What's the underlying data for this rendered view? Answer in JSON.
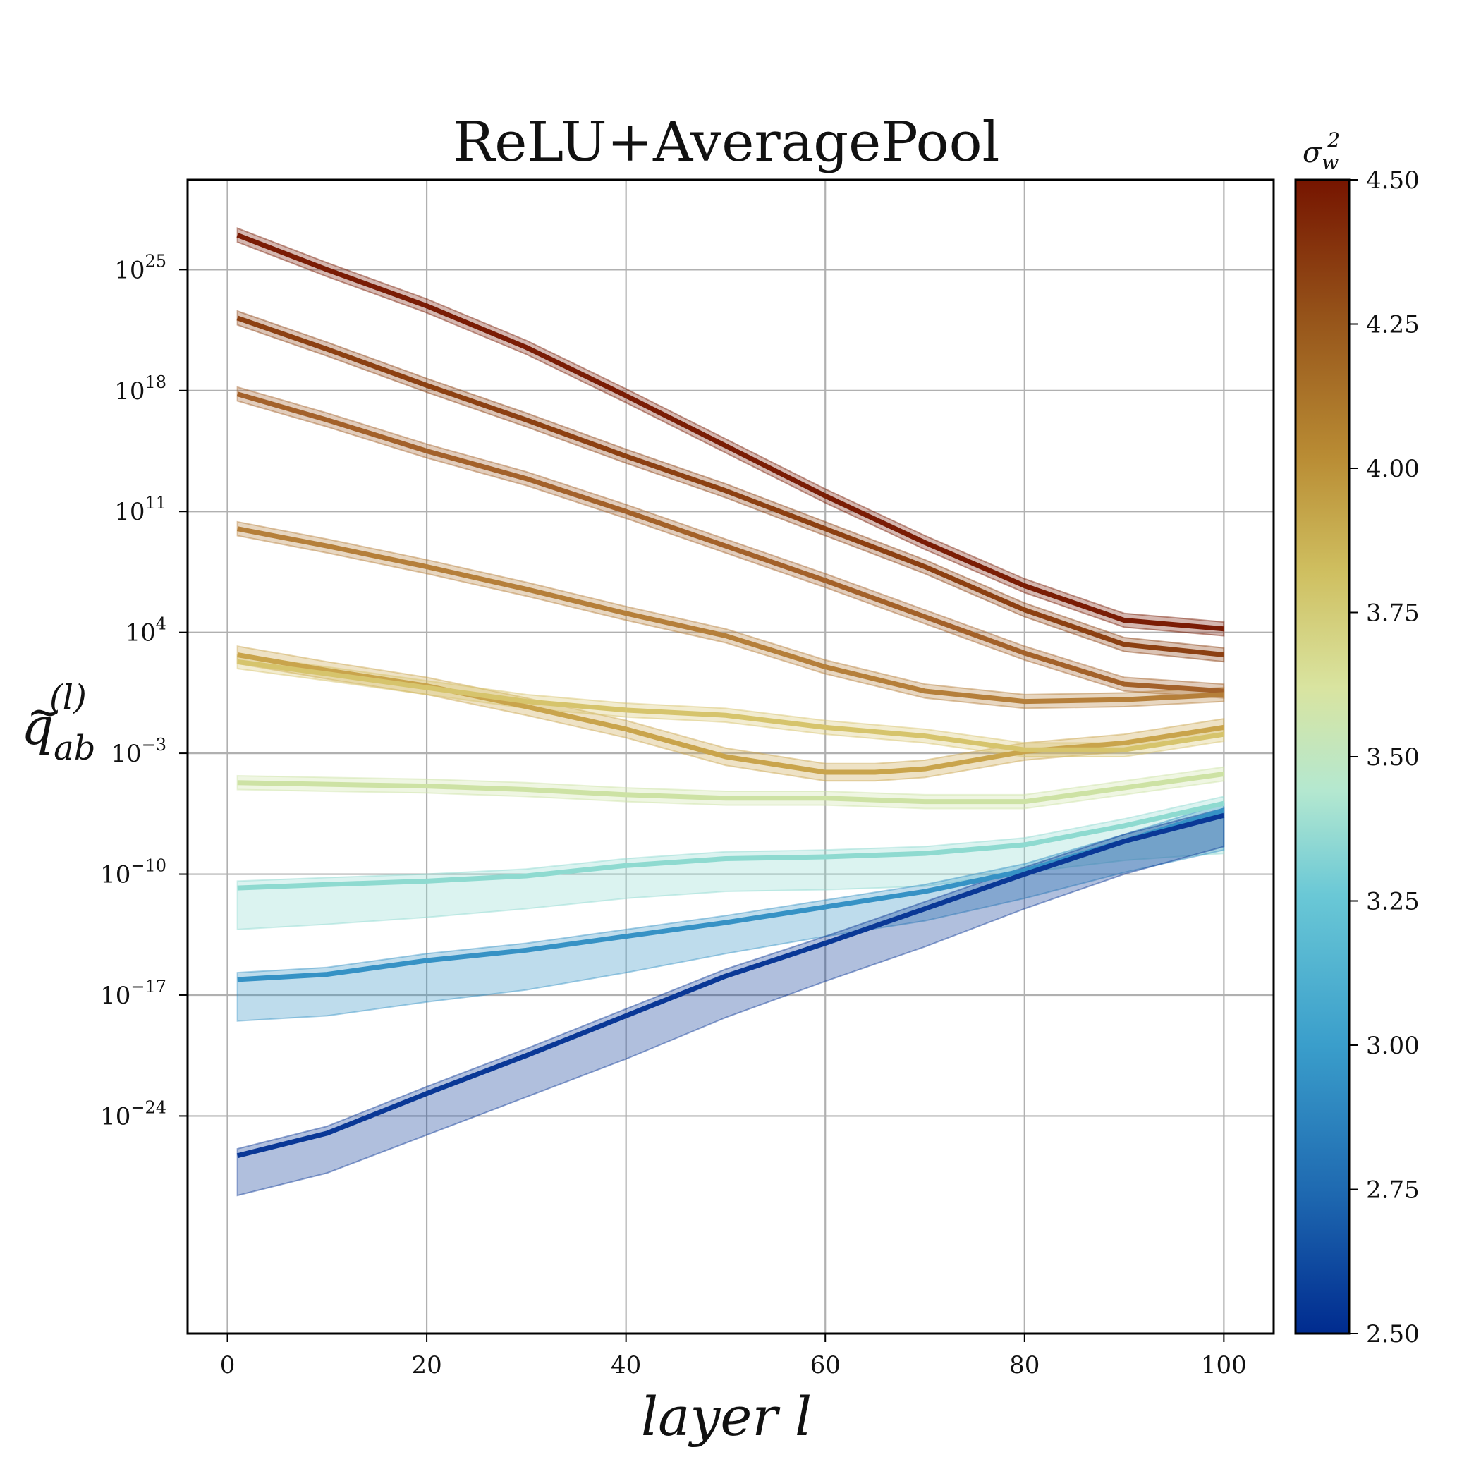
{
  "chart_data": {
    "type": "line",
    "title": "ReLU+AveragePool",
    "xlabel": "layer l",
    "ylabel": "q̃ab(l)",
    "xlim": [
      -4,
      105
    ],
    "ylim_log10": [
      -36.6,
      30.2
    ],
    "y_scale": "log",
    "grid": true,
    "x_ticks": [
      "0",
      "20",
      "40",
      "60",
      "80",
      "100"
    ],
    "y_ticks": [
      {
        "base": "10",
        "exp": "25",
        "exp_value": 25
      },
      {
        "base": "10",
        "exp": "18",
        "exp_value": 18
      },
      {
        "base": "10",
        "exp": "11",
        "exp_value": 11
      },
      {
        "base": "10",
        "exp": "4",
        "exp_value": 4
      },
      {
        "base": "10",
        "exp": "−3",
        "exp_value": -3
      },
      {
        "base": "10",
        "exp": "−10",
        "exp_value": -10
      },
      {
        "base": "10",
        "exp": "−17",
        "exp_value": -17
      },
      {
        "base": "10",
        "exp": "−24",
        "exp_value": -24
      }
    ],
    "colorbar": {
      "label": "σw²",
      "label_base": "σ",
      "label_sub": "w",
      "label_sup": "2",
      "range": [
        2.5,
        4.5
      ],
      "ticks": [
        "4.50",
        "4.25",
        "4.00",
        "3.75",
        "3.50",
        "3.25",
        "3.00",
        "2.75",
        "2.50"
      ],
      "colormap": [
        "#002b8f",
        "#1e68b0",
        "#3a9ecb",
        "#6ac8d6",
        "#b4e8d0",
        "#d9e4a0",
        "#cfbf60",
        "#b98c34",
        "#96541a",
        "#761500"
      ]
    },
    "series_note_units": "y values are log10 of the plotted quantity",
    "series": [
      {
        "sigma_w2": 4.5,
        "color": "#7a1c05",
        "x": [
          1,
          10,
          20,
          30,
          40,
          50,
          60,
          70,
          80,
          90,
          100
        ],
        "y_log10": [
          27.0,
          25.0,
          22.9,
          20.5,
          17.7,
          14.8,
          11.9,
          9.2,
          6.7,
          4.7,
          4.2
        ],
        "y_low": [
          26.6,
          24.6,
          22.5,
          20.1,
          17.3,
          14.4,
          11.5,
          8.8,
          6.3,
          4.3,
          3.8
        ],
        "y_high": [
          27.4,
          25.4,
          23.3,
          20.9,
          18.1,
          15.2,
          12.3,
          9.6,
          7.1,
          5.1,
          4.6
        ]
      },
      {
        "sigma_w2": 4.3,
        "color": "#8c4012",
        "x": [
          1,
          10,
          20,
          30,
          40,
          50,
          60,
          70,
          80,
          90,
          100
        ],
        "y_log10": [
          22.2,
          20.4,
          18.3,
          16.3,
          14.2,
          12.2,
          10.0,
          7.8,
          5.3,
          3.3,
          2.7
        ],
        "y_low": [
          21.8,
          20.0,
          17.9,
          15.9,
          13.8,
          11.8,
          9.6,
          7.4,
          4.9,
          2.9,
          2.3
        ],
        "y_high": [
          22.6,
          20.8,
          18.7,
          16.7,
          14.6,
          12.6,
          10.4,
          8.2,
          5.7,
          3.7,
          3.1
        ]
      },
      {
        "sigma_w2": 4.1,
        "color": "#a3612a",
        "x": [
          1,
          10,
          20,
          30,
          40,
          50,
          60,
          70,
          80,
          90,
          100
        ],
        "y_log10": [
          17.8,
          16.3,
          14.5,
          12.9,
          11.0,
          9.0,
          7.0,
          4.9,
          2.8,
          1.0,
          0.6
        ],
        "y_low": [
          17.4,
          15.9,
          14.1,
          12.5,
          10.6,
          8.6,
          6.6,
          4.5,
          2.4,
          0.6,
          0.2
        ],
        "y_high": [
          18.2,
          16.7,
          14.9,
          13.3,
          11.4,
          9.4,
          7.4,
          5.3,
          3.2,
          1.4,
          1.0
        ]
      },
      {
        "sigma_w2": 3.85,
        "color": "#b57f3a",
        "x": [
          1,
          10,
          20,
          30,
          40,
          50,
          60,
          70,
          80,
          90,
          100
        ],
        "y_log10": [
          10.0,
          9.0,
          7.8,
          6.5,
          5.1,
          3.8,
          2.0,
          0.6,
          0.0,
          0.1,
          0.4
        ],
        "y_low": [
          9.6,
          8.6,
          7.4,
          6.1,
          4.7,
          3.4,
          1.6,
          0.2,
          -0.4,
          -0.3,
          0.0
        ],
        "y_high": [
          10.4,
          9.4,
          8.2,
          6.9,
          5.5,
          4.2,
          2.4,
          1.0,
          0.4,
          0.5,
          0.8
        ]
      },
      {
        "sigma_w2": 3.62,
        "color": "#c9a44c",
        "x": [
          1,
          10,
          20,
          30,
          40,
          50,
          60,
          65,
          70,
          80,
          90,
          100
        ],
        "y_log10": [
          2.7,
          1.8,
          0.9,
          -0.3,
          -1.6,
          -3.2,
          -4.1,
          -4.1,
          -3.9,
          -2.9,
          -2.4,
          -1.5
        ],
        "y_low": [
          2.2,
          1.3,
          0.4,
          -0.8,
          -2.1,
          -3.7,
          -4.6,
          -4.6,
          -4.4,
          -3.4,
          -2.9,
          -2.0
        ],
        "y_high": [
          3.2,
          2.3,
          1.4,
          0.2,
          -1.1,
          -2.7,
          -3.6,
          -3.6,
          -3.4,
          -2.4,
          -1.9,
          -1.0
        ]
      },
      {
        "sigma_w2": 3.5,
        "color": "#d6c46c",
        "x": [
          1,
          10,
          20,
          30,
          40,
          50,
          60,
          70,
          80,
          90,
          100
        ],
        "y_log10": [
          2.3,
          1.6,
          0.8,
          0.0,
          -0.5,
          -0.8,
          -1.5,
          -2.0,
          -2.8,
          -2.8,
          -1.9
        ],
        "y_low": [
          1.9,
          1.2,
          0.4,
          -0.4,
          -0.9,
          -1.2,
          -1.9,
          -2.4,
          -3.2,
          -3.2,
          -2.3
        ],
        "y_high": [
          2.7,
          2.0,
          1.2,
          0.4,
          -0.1,
          -0.4,
          -1.1,
          -1.6,
          -2.4,
          -2.4,
          -1.5
        ]
      },
      {
        "sigma_w2": 3.2,
        "color": "#cde2a4",
        "x": [
          1,
          10,
          20,
          30,
          40,
          50,
          60,
          70,
          80,
          90,
          100
        ],
        "y_log10": [
          -4.7,
          -4.8,
          -4.9,
          -5.1,
          -5.4,
          -5.6,
          -5.6,
          -5.8,
          -5.8,
          -5.0,
          -4.2
        ],
        "y_low": [
          -5.1,
          -5.2,
          -5.3,
          -5.5,
          -5.8,
          -6.0,
          -6.0,
          -6.2,
          -6.2,
          -5.4,
          -4.6
        ],
        "y_high": [
          -4.3,
          -4.4,
          -4.5,
          -4.7,
          -5.0,
          -5.2,
          -5.2,
          -5.4,
          -5.4,
          -4.6,
          -3.8
        ]
      },
      {
        "sigma_w2": 2.95,
        "color": "#8edad0",
        "x": [
          1,
          10,
          20,
          30,
          40,
          50,
          60,
          70,
          80,
          90,
          100
        ],
        "y_log10": [
          -10.8,
          -10.6,
          -10.4,
          -10.1,
          -9.5,
          -9.1,
          -9.0,
          -8.8,
          -8.3,
          -7.2,
          -5.9
        ],
        "y_low": [
          -13.2,
          -12.9,
          -12.5,
          -12.0,
          -11.4,
          -11.0,
          -10.9,
          -10.7,
          -9.9,
          -9.2,
          -8.8
        ],
        "y_high": [
          -10.4,
          -10.2,
          -10.0,
          -9.7,
          -9.1,
          -8.7,
          -8.6,
          -8.4,
          -7.9,
          -6.8,
          -5.5
        ]
      },
      {
        "sigma_w2": 2.75,
        "color": "#3692c5",
        "x": [
          1,
          10,
          20,
          30,
          40,
          50,
          60,
          70,
          80,
          90,
          100
        ],
        "y_log10": [
          -16.1,
          -15.8,
          -15.0,
          -14.4,
          -13.6,
          -12.8,
          -11.9,
          -11.0,
          -9.8,
          -8.1,
          -6.3
        ],
        "y_low": [
          -18.5,
          -18.2,
          -17.4,
          -16.7,
          -15.7,
          -14.6,
          -13.6,
          -12.7,
          -11.4,
          -9.9,
          -8.6
        ],
        "y_high": [
          -15.7,
          -15.4,
          -14.6,
          -14.0,
          -13.2,
          -12.4,
          -11.5,
          -10.6,
          -9.4,
          -7.7,
          -5.9
        ]
      },
      {
        "sigma_w2": 2.5,
        "color": "#0a3896",
        "x": [
          1,
          10,
          20,
          30,
          40,
          50,
          60,
          70,
          80,
          90,
          100
        ],
        "y_log10": [
          -26.3,
          -25.0,
          -22.7,
          -20.5,
          -18.2,
          -15.9,
          -14.0,
          -12.0,
          -10.0,
          -8.1,
          -6.6
        ],
        "y_low": [
          -28.6,
          -27.3,
          -25.1,
          -22.9,
          -20.7,
          -18.3,
          -16.2,
          -14.2,
          -12.0,
          -10.0,
          -8.4
        ],
        "y_high": [
          -25.9,
          -24.6,
          -22.3,
          -20.1,
          -17.8,
          -15.5,
          -13.6,
          -11.6,
          -9.6,
          -7.7,
          -6.2
        ]
      }
    ]
  }
}
